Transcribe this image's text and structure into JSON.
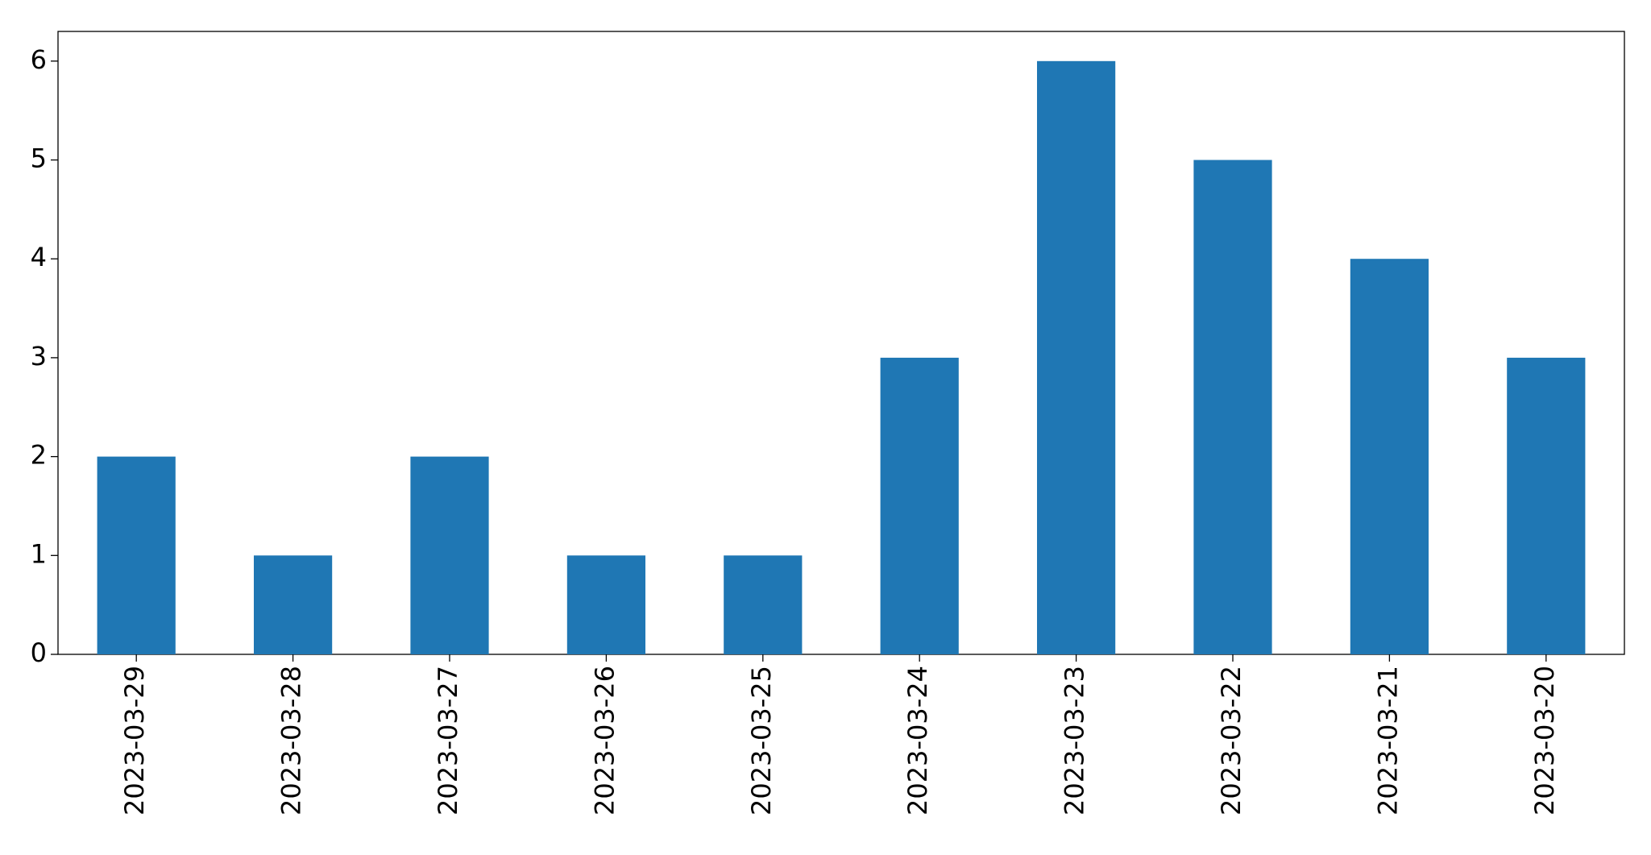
{
  "chart_data": {
    "type": "bar",
    "categories": [
      "2023-03-29",
      "2023-03-28",
      "2023-03-27",
      "2023-03-26",
      "2023-03-25",
      "2023-03-24",
      "2023-03-23",
      "2023-03-22",
      "2023-03-21",
      "2023-03-20"
    ],
    "values": [
      2,
      1,
      2,
      1,
      1,
      3,
      6,
      5,
      4,
      3
    ],
    "color": "#1f77b4",
    "ylim": [
      0,
      6.3
    ],
    "yticks": [
      0,
      1,
      2,
      3,
      4,
      5,
      6
    ],
    "grid": false
  }
}
